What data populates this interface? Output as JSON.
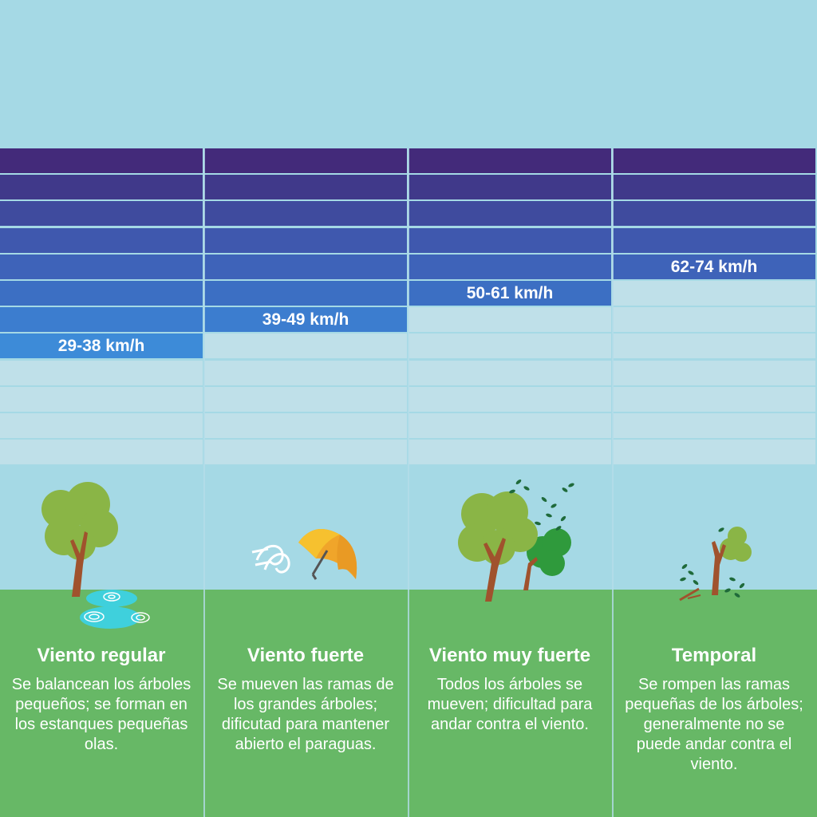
{
  "colors": {
    "sky": "#a5d9e5",
    "grass": "#67b866",
    "empty_band": "#bfe0e9",
    "bands": [
      "#432a7a",
      "#40398a",
      "#3f4b9e",
      "#3f58ae",
      "#3e63b9",
      "#3c6fc3",
      "#3c7dcf",
      "#3d8bd8"
    ],
    "label_text": "#ffffff"
  },
  "categories": [
    {
      "speed": "29-38 km/h",
      "filled_rows": 8,
      "title": "Viento regular",
      "description": "Se balancean los árboles pequeños; se forman en los estanques pequeñas olas.",
      "icon": "tree-with-pond-icon"
    },
    {
      "speed": "39-49 km/h",
      "filled_rows": 7,
      "title": "Viento fuerte",
      "description": "Se mueven las ramas de los grandes árboles; dificutad para mantener abierto el paraguas.",
      "icon": "umbrella-wind-icon"
    },
    {
      "speed": "50-61 km/h",
      "filled_rows": 6,
      "title": "Viento muy fuerte",
      "description": "Todos los árboles se mueven; dificultad para andar contra el viento.",
      "icon": "bending-trees-icon"
    },
    {
      "speed": "62-74 km/h",
      "filled_rows": 5,
      "title": "Temporal",
      "description": "Se rompen las ramas pequeñas de los árboles; generalmente no se puede andar contra el viento.",
      "icon": "broken-tree-icon"
    }
  ]
}
